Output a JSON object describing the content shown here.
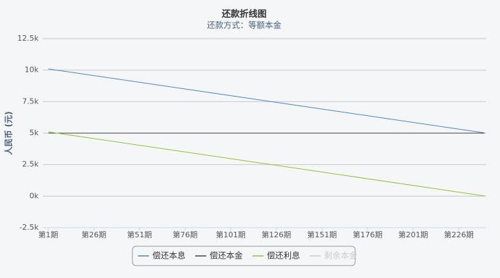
{
  "chart_data": {
    "type": "line",
    "title": "还款折线图",
    "subtitle": "还款方式：等额本金",
    "y_label": "人民币 (元)",
    "x": [
      1,
      240
    ],
    "xlim": [
      -2,
      241
    ],
    "xticks": [
      {
        "value": 1,
        "label": "第1期"
      },
      {
        "value": 26,
        "label": "第26期"
      },
      {
        "value": 51,
        "label": "第51期"
      },
      {
        "value": 76,
        "label": "第76期"
      },
      {
        "value": 101,
        "label": "第101期"
      },
      {
        "value": 126,
        "label": "第126期"
      },
      {
        "value": 151,
        "label": "第151期"
      },
      {
        "value": 176,
        "label": "第176期"
      },
      {
        "value": 201,
        "label": "第201期"
      },
      {
        "value": 226,
        "label": "第226期"
      }
    ],
    "ylim": [
      -2500,
      12500
    ],
    "yticks": [
      {
        "value": -2500,
        "label": "-2.5k"
      },
      {
        "value": 0,
        "label": "0k"
      },
      {
        "value": 2500,
        "label": "2.5k"
      },
      {
        "value": 5000,
        "label": "5k"
      },
      {
        "value": 7500,
        "label": "7.5k"
      },
      {
        "value": 10000,
        "label": "10k"
      },
      {
        "value": 12500,
        "label": "12.5k"
      }
    ],
    "grid": true,
    "series": [
      {
        "name": "偿还本息",
        "color": "#4a86c8",
        "values": [
          10100,
          5021
        ]
      },
      {
        "name": "偿还本金",
        "color": "#434348",
        "values": [
          5000,
          5000
        ]
      },
      {
        "name": "偿还利息",
        "color": "#90c040",
        "values": [
          5100,
          21
        ]
      },
      {
        "name": "剩余本金",
        "color": "#cccccc",
        "hidden": true
      }
    ]
  }
}
